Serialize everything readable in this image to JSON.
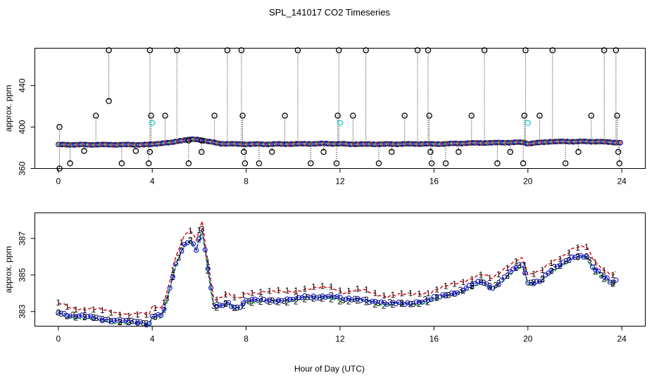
{
  "chart_data": [
    {
      "type": "scatter",
      "title": "SPL_141017  CO2 Timeseries",
      "xlabel": "",
      "ylabel": "approx. ppm",
      "xlim": [
        -1,
        25
      ],
      "ylim": [
        360,
        476
      ],
      "xticks": [
        0,
        4,
        8,
        12,
        16,
        20,
        24
      ],
      "yticks": [
        360,
        400,
        440
      ],
      "colors": {
        "frame": "#000000",
        "series1": "#000000",
        "series2": "#0000cc",
        "series3": "#22cccc"
      },
      "baseline": [
        [
          0.0,
          383
        ],
        [
          3.8,
          383
        ],
        [
          4.2,
          384
        ],
        [
          4.8,
          385
        ],
        [
          5.2,
          387
        ],
        [
          5.6,
          388
        ],
        [
          6.0,
          388
        ],
        [
          6.4,
          386
        ],
        [
          6.9,
          384
        ],
        [
          7.8,
          383.5
        ],
        [
          9,
          383.5
        ],
        [
          11.5,
          384
        ],
        [
          12.5,
          383.5
        ],
        [
          14,
          383.5
        ],
        [
          15.8,
          383.8
        ],
        [
          16,
          383.5
        ],
        [
          17.5,
          384.5
        ],
        [
          19,
          385
        ],
        [
          19.8,
          385.3
        ],
        [
          20,
          384
        ],
        [
          21,
          386
        ],
        [
          22,
          386
        ],
        [
          23,
          386
        ],
        [
          23.8,
          385
        ]
      ],
      "spikes": [
        {
          "x": 0.05,
          "top": 400,
          "bottom": 360
        },
        {
          "x": 0.5,
          "top": 383,
          "bottom": 365
        },
        {
          "x": 1.1,
          "top": 383,
          "bottom": 377
        },
        {
          "x": 1.6,
          "top": 411,
          "bottom": 383
        },
        {
          "x": 2.15,
          "top": 474,
          "bottom": 425
        },
        {
          "x": 2.7,
          "top": 383,
          "bottom": 365
        },
        {
          "x": 3.3,
          "top": 383,
          "bottom": 377
        },
        {
          "x": 3.85,
          "top": 383,
          "bottom": 365
        },
        {
          "x": 3.9,
          "top": 383,
          "bottom": 376
        },
        {
          "x": 3.9,
          "top": 474,
          "bottom": 383
        },
        {
          "x": 3.95,
          "top": 411,
          "bottom": 383
        },
        {
          "x": 4.55,
          "top": 411,
          "bottom": 386
        },
        {
          "x": 5.05,
          "top": 474,
          "bottom": 386
        },
        {
          "x": 5.55,
          "top": 387,
          "bottom": 365
        },
        {
          "x": 6.1,
          "top": 387,
          "bottom": 376
        },
        {
          "x": 6.65,
          "top": 411,
          "bottom": 385
        },
        {
          "x": 7.2,
          "top": 474,
          "bottom": 385
        },
        {
          "x": 7.8,
          "top": 474,
          "bottom": 384
        },
        {
          "x": 7.85,
          "top": 411,
          "bottom": 384
        },
        {
          "x": 7.9,
          "top": 384,
          "bottom": 376
        },
        {
          "x": 7.95,
          "top": 384,
          "bottom": 365
        },
        {
          "x": 8.55,
          "top": 384,
          "bottom": 365
        },
        {
          "x": 9.1,
          "top": 384,
          "bottom": 376
        },
        {
          "x": 9.65,
          "top": 411,
          "bottom": 384
        },
        {
          "x": 10.2,
          "top": 474,
          "bottom": 384
        },
        {
          "x": 10.75,
          "top": 384,
          "bottom": 365
        },
        {
          "x": 11.3,
          "top": 384,
          "bottom": 376
        },
        {
          "x": 11.85,
          "top": 384,
          "bottom": 365
        },
        {
          "x": 11.9,
          "top": 411,
          "bottom": 384
        },
        {
          "x": 11.95,
          "top": 474,
          "bottom": 384
        },
        {
          "x": 12.55,
          "top": 411,
          "bottom": 384
        },
        {
          "x": 13.1,
          "top": 474,
          "bottom": 384
        },
        {
          "x": 13.65,
          "top": 384,
          "bottom": 365
        },
        {
          "x": 14.2,
          "top": 384,
          "bottom": 376
        },
        {
          "x": 14.75,
          "top": 411,
          "bottom": 384
        },
        {
          "x": 15.3,
          "top": 474,
          "bottom": 384
        },
        {
          "x": 15.75,
          "top": 474,
          "bottom": 384
        },
        {
          "x": 15.8,
          "top": 411,
          "bottom": 384
        },
        {
          "x": 15.85,
          "top": 384,
          "bottom": 376
        },
        {
          "x": 15.9,
          "top": 384,
          "bottom": 365
        },
        {
          "x": 16.5,
          "top": 384,
          "bottom": 365
        },
        {
          "x": 17.05,
          "top": 384,
          "bottom": 376
        },
        {
          "x": 17.6,
          "top": 411,
          "bottom": 384
        },
        {
          "x": 18.15,
          "top": 474,
          "bottom": 384
        },
        {
          "x": 18.7,
          "top": 385,
          "bottom": 365
        },
        {
          "x": 19.25,
          "top": 385,
          "bottom": 376
        },
        {
          "x": 19.8,
          "top": 385,
          "bottom": 365
        },
        {
          "x": 19.85,
          "top": 411,
          "bottom": 385
        },
        {
          "x": 19.9,
          "top": 474,
          "bottom": 385
        },
        {
          "x": 20.5,
          "top": 411,
          "bottom": 386
        },
        {
          "x": 21.05,
          "top": 474,
          "bottom": 386
        },
        {
          "x": 21.6,
          "top": 386,
          "bottom": 365
        },
        {
          "x": 22.15,
          "top": 386,
          "bottom": 376
        },
        {
          "x": 22.7,
          "top": 411,
          "bottom": 386
        },
        {
          "x": 23.25,
          "top": 474,
          "bottom": 386
        },
        {
          "x": 23.75,
          "top": 474,
          "bottom": 385
        },
        {
          "x": 23.8,
          "top": 411,
          "bottom": 385
        },
        {
          "x": 23.85,
          "top": 385,
          "bottom": 376
        },
        {
          "x": 23.9,
          "top": 385,
          "bottom": 365
        }
      ],
      "cyan_points": [
        [
          4.0,
          404
        ],
        [
          12.0,
          404
        ],
        [
          20.0,
          404
        ]
      ]
    },
    {
      "type": "line",
      "title": "",
      "xlabel": "Hour of Day (UTC)",
      "ylabel": "approx. ppm",
      "xlim": [
        -1,
        25
      ],
      "ylim": [
        382.2,
        388.4
      ],
      "xticks": [
        0,
        4,
        8,
        12,
        16,
        20,
        24
      ],
      "yticks": [
        383,
        385,
        387
      ],
      "series": [
        {
          "name": "1",
          "color": "#dd0000",
          "offset": 0.45,
          "gap_after": 15.8
        },
        {
          "name": "2",
          "color": "#00bb00",
          "offset": -0.08,
          "gap_after": 15.8
        },
        {
          "name": "3",
          "color": "#1111bb",
          "offset": 0.0,
          "gap_after": 15.8
        }
      ],
      "profile": [
        [
          0,
          383
        ],
        [
          0.5,
          382.8
        ],
        [
          1,
          382.7
        ],
        [
          1.5,
          382.65
        ],
        [
          2,
          382.6
        ],
        [
          2.5,
          382.5
        ],
        [
          3,
          382.4
        ],
        [
          3.5,
          382.4
        ],
        [
          3.9,
          382.35
        ],
        [
          4.0,
          382.8
        ],
        [
          4.4,
          382.8
        ],
        [
          4.6,
          383.5
        ],
        [
          4.8,
          384.5
        ],
        [
          5.0,
          385.5
        ],
        [
          5.3,
          386.5
        ],
        [
          5.6,
          387
        ],
        [
          5.9,
          386.4
        ],
        [
          6.1,
          387.7
        ],
        [
          6.3,
          386
        ],
        [
          6.6,
          383.3
        ],
        [
          6.8,
          383.2
        ],
        [
          7.2,
          383.5
        ],
        [
          7.6,
          383.2
        ],
        [
          8.0,
          383.6
        ],
        [
          9,
          383.6
        ],
        [
          10,
          383.7
        ],
        [
          11,
          383.8
        ],
        [
          11.5,
          383.9
        ],
        [
          11.9,
          383.8
        ],
        [
          12.1,
          383.6
        ],
        [
          13,
          383.7
        ],
        [
          14,
          383.4
        ],
        [
          15,
          383.5
        ],
        [
          15.8,
          383.6
        ],
        [
          16,
          383.7
        ],
        [
          17,
          384.1
        ],
        [
          18,
          384.6
        ],
        [
          18.5,
          384.3
        ],
        [
          19,
          384.9
        ],
        [
          19.5,
          385.4
        ],
        [
          19.8,
          385.5
        ],
        [
          20,
          384.5
        ],
        [
          20.5,
          384.7
        ],
        [
          21,
          385.3
        ],
        [
          21.5,
          385.6
        ],
        [
          22,
          386.0
        ],
        [
          22.5,
          386.1
        ],
        [
          22.8,
          385.4
        ],
        [
          23.2,
          384.9
        ],
        [
          23.6,
          384.5
        ],
        [
          23.8,
          384.7
        ]
      ]
    }
  ]
}
